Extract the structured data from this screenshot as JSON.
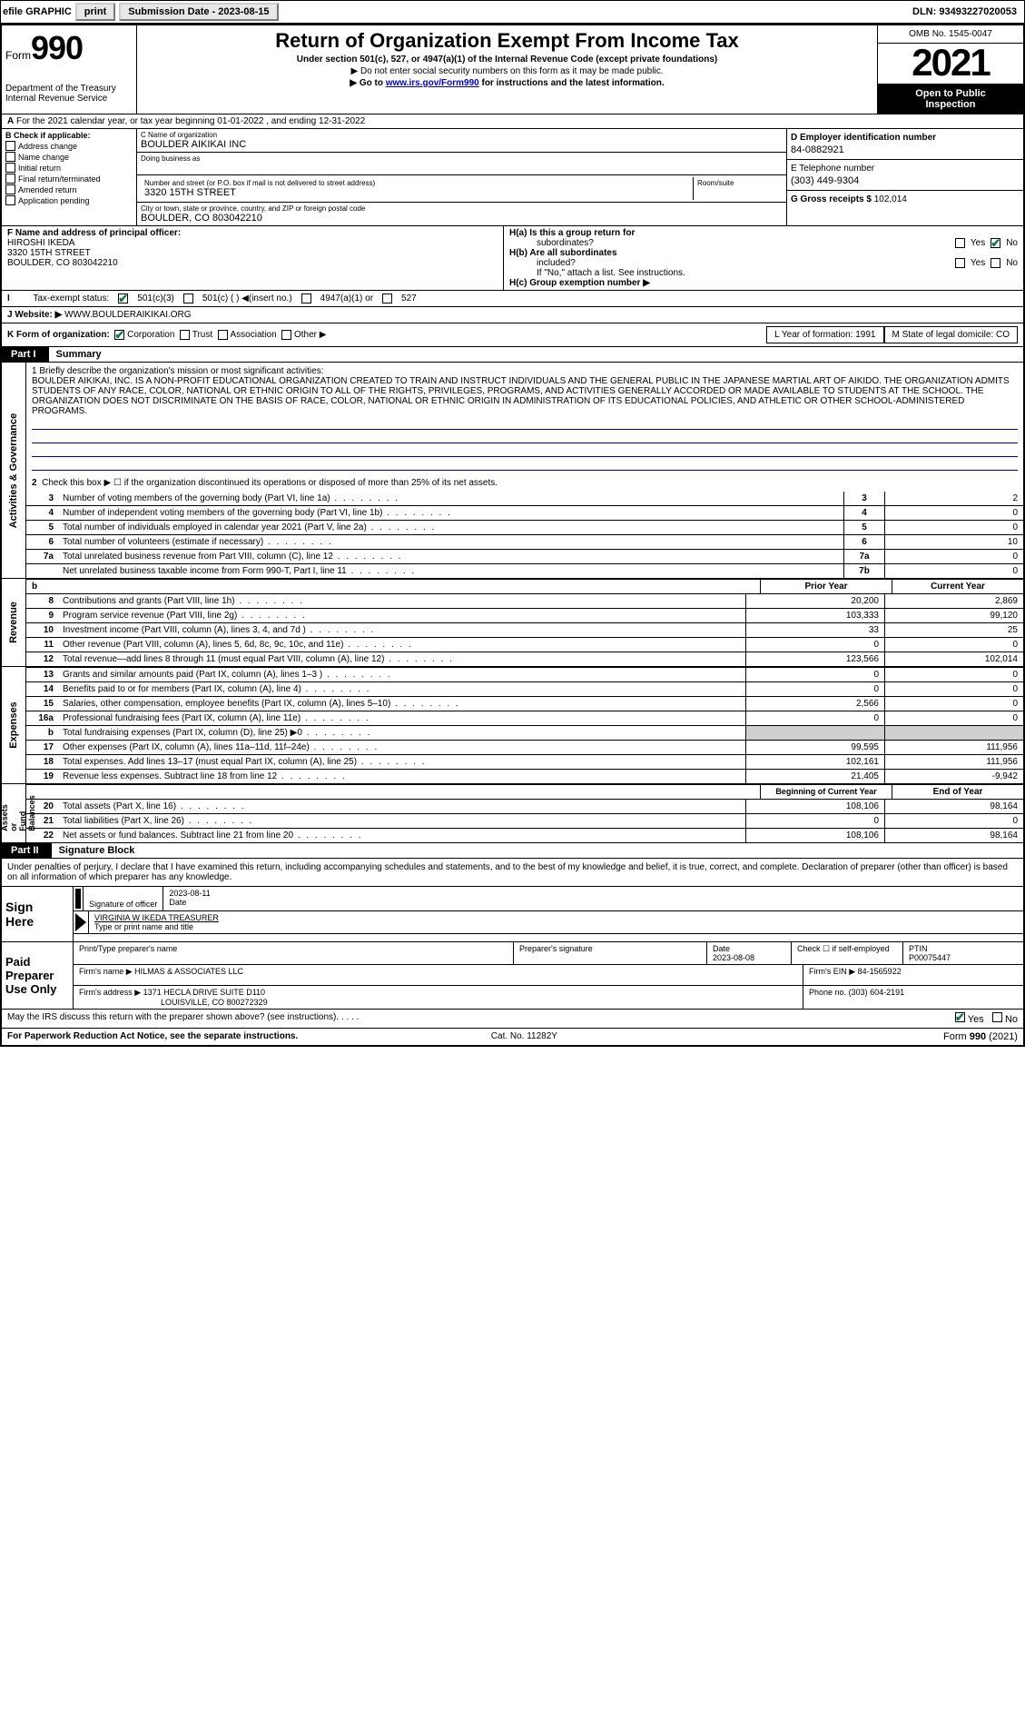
{
  "top": {
    "efile": "efile GRAPHIC",
    "print": "print",
    "sub_label": "Submission Date - 2023-08-15",
    "dln": "DLN: 93493227020053"
  },
  "header": {
    "form_prefix": "Form",
    "form_num": "990",
    "dept": "Department of the Treasury\nInternal Revenue Service",
    "title": "Return of Organization Exempt From Income Tax",
    "sub1": "Under section 501(c), 527, or 4947(a)(1) of the Internal Revenue Code (except private foundations)",
    "sub2": "▶ Do not enter social security numbers on this form as it may be made public.",
    "sub3_pre": "▶ Go to ",
    "sub3_link": "www.irs.gov/Form990",
    "sub3_post": " for instructions and the latest information.",
    "omb": "OMB No. 1545-0047",
    "year": "2021",
    "inspect": "Open to Public\nInspection"
  },
  "rowA": "For the 2021 calendar year, or tax year beginning 01-01-2022   , and ending 12-31-2022",
  "colB": {
    "hdr": "B Check if applicable:",
    "items": [
      "Address change",
      "Name change",
      "Initial return",
      "Final return/terminated",
      "Amended return",
      "Application pending"
    ]
  },
  "colC": {
    "name_lbl": "C Name of organization",
    "name": "BOULDER AIKIKAI INC",
    "dba_lbl": "Doing business as",
    "dba": "",
    "addr_lbl": "Number and street (or P.O. box if mail is not delivered to street address)",
    "addr": "3320 15TH STREET",
    "room_lbl": "Room/suite",
    "room": "",
    "city_lbl": "City or town, state or province, country, and ZIP or foreign postal code",
    "city": "BOULDER, CO  803042210"
  },
  "colD": {
    "ein_lbl": "D Employer identification number",
    "ein": "84-0882921",
    "tel_lbl": "E Telephone number",
    "tel": "(303) 449-9304",
    "gross_lbl": "G Gross receipts $",
    "gross": "102,014"
  },
  "rowF": {
    "lbl": "F  Name and address of principal officer:",
    "name": "HIROSHI IKEDA",
    "addr1": "3320 15TH STREET",
    "addr2": "BOULDER, CO  803042210"
  },
  "rowH": {
    "a": "H(a)  Is this a group return for",
    "a2": "subordinates?",
    "b": "H(b)  Are all subordinates",
    "b2": "included?",
    "c_note": "If \"No,\" attach a list. See instructions.",
    "c": "H(c)  Group exemption number ▶",
    "yes": "Yes",
    "no": "No"
  },
  "rowI": {
    "lbl": "Tax-exempt status:",
    "o1": "501(c)(3)",
    "o2": "501(c) (  ) ◀(insert no.)",
    "o3": "4947(a)(1) or",
    "o4": "527"
  },
  "rowJ": {
    "lbl": "J   Website: ▶",
    "val": "WWW.BOULDERAIKIKAI.ORG"
  },
  "rowK": {
    "lbl": "K Form of organization:",
    "o1": "Corporation",
    "o2": "Trust",
    "o3": "Association",
    "o4": "Other ▶",
    "L_lbl": "L Year of formation:",
    "L_val": "1991",
    "M_lbl": "M State of legal domicile:",
    "M_val": "CO"
  },
  "partI": {
    "hdr": "Part I",
    "title": "Summary",
    "q1_lbl": "1   Briefly describe the organization's mission or most significant activities:",
    "mission": "BOULDER AIKIKAI, INC. IS A NON-PROFIT EDUCATIONAL ORGANIZATION CREATED TO TRAIN AND INSTRUCT INDIVIDUALS AND THE GENERAL PUBLIC IN THE JAPANESE MARTIAL ART OF AIKIDO. THE ORGANIZATION ADMITS STUDENTS OF ANY RACE, COLOR, NATIONAL OR ETHNIC ORIGIN TO ALL OF THE RIGHTS, PRIVILEGES, PROGRAMS, AND ACTIVITIES GENERALLY ACCORDED OR MADE AVAILABLE TO STUDENTS AT THE SCHOOL. THE ORGANIZATION DOES NOT DISCRIMINATE ON THE BASIS OF RACE, COLOR, NATIONAL OR ETHNIC ORIGIN IN ADMINISTRATION OF ITS EDUCATIONAL POLICIES, AND ATHLETIC OR OTHER SCHOOL-ADMINISTERED PROGRAMS.",
    "q2": "Check this box ▶ ☐  if the organization discontinued its operations or disposed of more than 25% of its net assets.",
    "lines_gov": [
      {
        "n": "3",
        "d": "Number of voting members of the governing body (Part VI, line 1a)",
        "cn": "3",
        "v": "2"
      },
      {
        "n": "4",
        "d": "Number of independent voting members of the governing body (Part VI, line 1b)",
        "cn": "4",
        "v": "0"
      },
      {
        "n": "5",
        "d": "Total number of individuals employed in calendar year 2021 (Part V, line 2a)",
        "cn": "5",
        "v": "0"
      },
      {
        "n": "6",
        "d": "Total number of volunteers (estimate if necessary)",
        "cn": "6",
        "v": "10"
      },
      {
        "n": "7a",
        "d": "Total unrelated business revenue from Part VIII, column (C), line 12",
        "cn": "7a",
        "v": "0"
      },
      {
        "n": "",
        "d": "Net unrelated business taxable income from Form 990-T, Part I, line 11",
        "cn": "7b",
        "v": "0"
      }
    ],
    "col_prior": "Prior Year",
    "col_current": "Current Year",
    "lines_rev": [
      {
        "n": "8",
        "d": "Contributions and grants (Part VIII, line 1h)",
        "p": "20,200",
        "c": "2,869"
      },
      {
        "n": "9",
        "d": "Program service revenue (Part VIII, line 2g)",
        "p": "103,333",
        "c": "99,120"
      },
      {
        "n": "10",
        "d": "Investment income (Part VIII, column (A), lines 3, 4, and 7d )",
        "p": "33",
        "c": "25"
      },
      {
        "n": "11",
        "d": "Other revenue (Part VIII, column (A), lines 5, 6d, 8c, 9c, 10c, and 11e)",
        "p": "0",
        "c": "0"
      },
      {
        "n": "12",
        "d": "Total revenue—add lines 8 through 11 (must equal Part VIII, column (A), line 12)",
        "p": "123,566",
        "c": "102,014"
      }
    ],
    "lines_exp": [
      {
        "n": "13",
        "d": "Grants and similar amounts paid (Part IX, column (A), lines 1–3 )",
        "p": "0",
        "c": "0"
      },
      {
        "n": "14",
        "d": "Benefits paid to or for members (Part IX, column (A), line 4)",
        "p": "0",
        "c": "0"
      },
      {
        "n": "15",
        "d": "Salaries, other compensation, employee benefits (Part IX, column (A), lines 5–10)",
        "p": "2,566",
        "c": "0"
      },
      {
        "n": "16a",
        "d": "Professional fundraising fees (Part IX, column (A), line 11e)",
        "p": "0",
        "c": "0"
      },
      {
        "n": "b",
        "d": "Total fundraising expenses (Part IX, column (D), line 25) ▶0",
        "p": "",
        "c": "",
        "shade": true
      },
      {
        "n": "17",
        "d": "Other expenses (Part IX, column (A), lines 11a–11d, 11f–24e)",
        "p": "99,595",
        "c": "111,956"
      },
      {
        "n": "18",
        "d": "Total expenses. Add lines 13–17 (must equal Part IX, column (A), line 25)",
        "p": "102,161",
        "c": "111,956"
      },
      {
        "n": "19",
        "d": "Revenue less expenses. Subtract line 18 from line 12",
        "p": "21,405",
        "c": "-9,942"
      }
    ],
    "col_boy": "Beginning of Current Year",
    "col_eoy": "End of Year",
    "lines_net": [
      {
        "n": "20",
        "d": "Total assets (Part X, line 16)",
        "p": "108,106",
        "c": "98,164"
      },
      {
        "n": "21",
        "d": "Total liabilities (Part X, line 26)",
        "p": "0",
        "c": "0"
      },
      {
        "n": "22",
        "d": "Net assets or fund balances. Subtract line 21 from line 20",
        "p": "108,106",
        "c": "98,164"
      }
    ],
    "tabs": [
      "Activities & Governance",
      "Revenue",
      "Expenses",
      "Net Assets or\nFund Balances"
    ]
  },
  "partII": {
    "hdr": "Part II",
    "title": "Signature Block",
    "decl": "Under penalties of perjury, I declare that I have examined this return, including accompanying schedules and statements, and to the best of my knowledge and belief, it is true, correct, and complete. Declaration of preparer (other than officer) is based on all information of which preparer has any knowledge."
  },
  "sign": {
    "left": "Sign\nHere",
    "sig_lbl": "Signature of officer",
    "date": "2023-08-11",
    "date_lbl": "Date",
    "name": "VIRGINIA W IKEDA  TREASURER",
    "name_lbl": "Type or print name and title"
  },
  "paid": {
    "left": "Paid\nPreparer\nUse Only",
    "r1_a": "Print/Type preparer's name",
    "r1_b": "Preparer's signature",
    "r1_c_lbl": "Date",
    "r1_c": "2023-08-08",
    "r1_d_lbl": "Check ☐ if self-employed",
    "r1_e_lbl": "PTIN",
    "r1_e": "P00075447",
    "r2_lbl": "Firm's name    ▶",
    "r2": "HILMAS & ASSOCIATES LLC",
    "r2_ein_lbl": "Firm's EIN ▶",
    "r2_ein": "84-1565922",
    "r3_lbl": "Firm's address ▶",
    "r3a": "1371 HECLA DRIVE SUITE D110",
    "r3b": "LOUISVILLE, CO  800272329",
    "r3_ph_lbl": "Phone no.",
    "r3_ph": "(303) 604-2191"
  },
  "footer": {
    "discuss": "May the IRS discuss this return with the preparer shown above? (see instructions)",
    "yes": "Yes",
    "no": "No",
    "pra": "For Paperwork Reduction Act Notice, see the separate instructions.",
    "cat": "Cat. No. 11282Y",
    "form": "Form 990 (2021)"
  }
}
